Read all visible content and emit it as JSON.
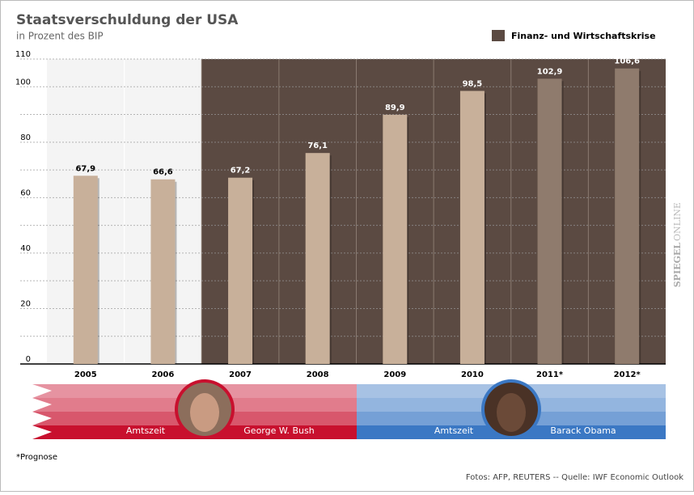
{
  "chart_data": {
    "type": "bar",
    "title": "Staatsverschuldung der USA",
    "subtitle": "in Prozent des BIP",
    "categories": [
      "2005",
      "2006",
      "2007",
      "2008",
      "2009",
      "2010",
      "2011*",
      "2012*"
    ],
    "values": [
      67.9,
      66.6,
      67.2,
      76.1,
      89.9,
      98.5,
      102.9,
      106.6
    ],
    "value_labels": [
      "67,9",
      "66,6",
      "67,2",
      "76,1",
      "89,9",
      "98,5",
      "102,9",
      "106,6"
    ],
    "colors": [
      "#c8b09a",
      "#c8b09a",
      "#c8b09a",
      "#c8b09a",
      "#c8b09a",
      "#c8b09a",
      "#8f7b6d",
      "#8f7b6d"
    ],
    "ylim": [
      0,
      110
    ],
    "yticks": [
      0,
      20,
      40,
      60,
      80,
      100,
      110
    ],
    "minor_yticks": [
      10,
      30,
      50,
      70,
      90
    ],
    "grid": true,
    "legend": {
      "label": "Finanz- und Wirtschaftskrise",
      "color": "#5b4a42",
      "from_index": 2
    }
  },
  "terms": [
    {
      "label": "Amtszeit",
      "name": "George W. Bush",
      "color": "#c8102e"
    },
    {
      "label": "Amtszeit",
      "name": "Barack Obama",
      "color": "#3b78c4"
    }
  ],
  "footnote": "*Prognose",
  "source": "Fotos: AFP, REUTERS -- Quelle: IWF Economic Outlook",
  "watermark": [
    "SPIEGEL",
    "ONLINE"
  ]
}
